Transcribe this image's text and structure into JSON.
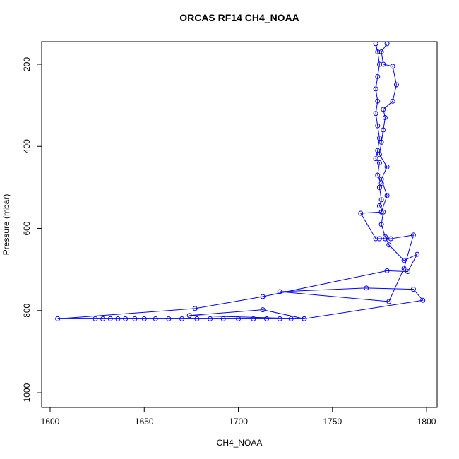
{
  "chart_data": {
    "type": "line",
    "title": "ORCAS RF14 CH4_NOAA",
    "x_label": "CH4_NOAA",
    "y_label": "Pressure (mbar)",
    "color": "#0000ff",
    "x": [
      1773,
      1774,
      1775,
      1774,
      1773,
      1774,
      1773,
      1774,
      1775,
      1774,
      1773,
      1775,
      1774,
      1776,
      1775,
      1776,
      1775,
      1777,
      1776,
      1778,
      1780,
      1788,
      1795,
      1790,
      1779,
      1713,
      1677,
      1604,
      1624,
      1628,
      1632,
      1636,
      1640,
      1645,
      1650,
      1656,
      1663,
      1670,
      1678,
      1685,
      1692,
      1700,
      1708,
      1715,
      1722,
      1728,
      1735,
      1713,
      1674,
      1735,
      1798,
      1793,
      1768,
      1722,
      1780,
      1788,
      1793,
      1781,
      1778,
      1775,
      1773,
      1765,
      1776,
      1779,
      1776,
      1779,
      1775,
      1776,
      1777,
      1778,
      1777,
      1782,
      1784,
      1782,
      1777,
      1776,
      1779
    ],
    "values": [
      150,
      170,
      200,
      230,
      260,
      290,
      320,
      350,
      380,
      410,
      430,
      440,
      470,
      490,
      500,
      530,
      545,
      560,
      590,
      620,
      640,
      678,
      663,
      705,
      703,
      766,
      795,
      820,
      820,
      820,
      820,
      820,
      820,
      820,
      820,
      820,
      820,
      820,
      820,
      820,
      820,
      820,
      820,
      820,
      820,
      820,
      820,
      798,
      812,
      820,
      775,
      748,
      745,
      754,
      778,
      697,
      616,
      625,
      625,
      625,
      625,
      563,
      560,
      520,
      480,
      450,
      420,
      390,
      360,
      330,
      310,
      290,
      250,
      205,
      200,
      170,
      150
    ],
    "xlim": [
      1595.5,
      1805.6
    ],
    "ylim": [
      1036,
      145
    ],
    "xticks": [
      1600,
      1650,
      1700,
      1750,
      1800
    ],
    "yticks": [
      200,
      400,
      600,
      800,
      1000
    ]
  }
}
